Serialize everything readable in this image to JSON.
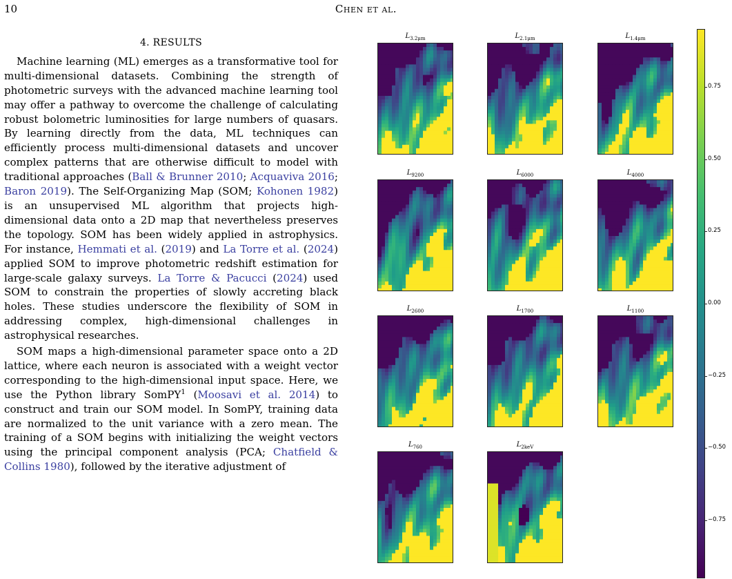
{
  "header": {
    "page_number": "10",
    "authors": "Chen et al."
  },
  "section": {
    "title": "4. RESULTS"
  },
  "paragraph1": [
    {
      "t": "Machine learning (ML) emerges as a transformative tool for multi-dimensional datasets. Combining the strength of photometric surveys with the advanced machine learning tool may offer a pathway to overcome the challenge of calculating robust bolometric luminosities for large numbers of quasars. By learning directly from the data, ML techniques can efficiently process multi-dimensional datasets and uncover complex patterns that are otherwise difficult to model with traditional approaches ("
    },
    {
      "t": "Ball & Brunner 2010",
      "link": true
    },
    {
      "t": "; "
    },
    {
      "t": "Acquaviva 2016",
      "link": true
    },
    {
      "t": "; "
    },
    {
      "t": "Baron 2019",
      "link": true
    },
    {
      "t": "). The Self-Organizing Map (SOM; "
    },
    {
      "t": "Kohonen 1982",
      "link": true
    },
    {
      "t": ") is an unsupervised ML algorithm that projects high-dimensional data onto a 2D map that nevertheless preserves the topology. SOM has been widely applied in astrophysics. For instance, "
    },
    {
      "t": "Hemmati et al.",
      "link": true
    },
    {
      "t": " ("
    },
    {
      "t": "2019",
      "link": true
    },
    {
      "t": ") and "
    },
    {
      "t": "La Torre et al.",
      "link": true
    },
    {
      "t": " ("
    },
    {
      "t": "2024",
      "link": true
    },
    {
      "t": ") applied SOM to improve photometric redshift estimation for large-scale galaxy surveys. "
    },
    {
      "t": "La Torre & Pacucci",
      "link": true
    },
    {
      "t": " ("
    },
    {
      "t": "2024",
      "link": true
    },
    {
      "t": ") used SOM to constrain the properties of slowly accreting black holes. These studies underscore the flexibility of SOM in addressing complex, high-dimensional challenges in astrophysical researches."
    }
  ],
  "paragraph2": [
    {
      "t": "SOM maps a high-dimensional parameter space onto a 2D lattice, where each neuron is associated with a weight vector corresponding to the high-dimensional input space. Here, we use the Python library SomPY"
    },
    {
      "t": "1",
      "sup": true
    },
    {
      "t": " ("
    },
    {
      "t": "Moosavi et al. 2014",
      "link": true
    },
    {
      "t": ") to construct and train our SOM model. In SomPY, training data are normalized to the unit variance with a zero mean. The training of a SOM begins with initializing the weight vectors using the principal component analysis (PCA; "
    },
    {
      "t": "Chatfield & Collins 1980",
      "link": true
    },
    {
      "t": "), followed by the iterative adjustment of"
    }
  ],
  "figure": {
    "panels": [
      {
        "base": "L",
        "sub": "3.2μm"
      },
      {
        "base": "L",
        "sub": "2.1μm"
      },
      {
        "base": "L",
        "sub": "1.4μm"
      },
      {
        "base": "L",
        "sub": "9200"
      },
      {
        "base": "L",
        "sub": "6000"
      },
      {
        "base": "L",
        "sub": "4000"
      },
      {
        "base": "L",
        "sub": "2600"
      },
      {
        "base": "L",
        "sub": "1700"
      },
      {
        "base": "L",
        "sub": "1100"
      },
      {
        "base": "L",
        "sub": "760"
      },
      {
        "base": "L",
        "sub": "2keV"
      }
    ],
    "colorbar": {
      "min": -0.95,
      "max": 0.95,
      "ticks": [
        "0.75",
        "0.50",
        "0.25",
        "0.00",
        "−0.25",
        "−0.50",
        "−0.75"
      ],
      "tick_values": [
        0.75,
        0.5,
        0.25,
        0.0,
        -0.25,
        -0.5,
        -0.75
      ]
    },
    "colormap": "viridis"
  }
}
